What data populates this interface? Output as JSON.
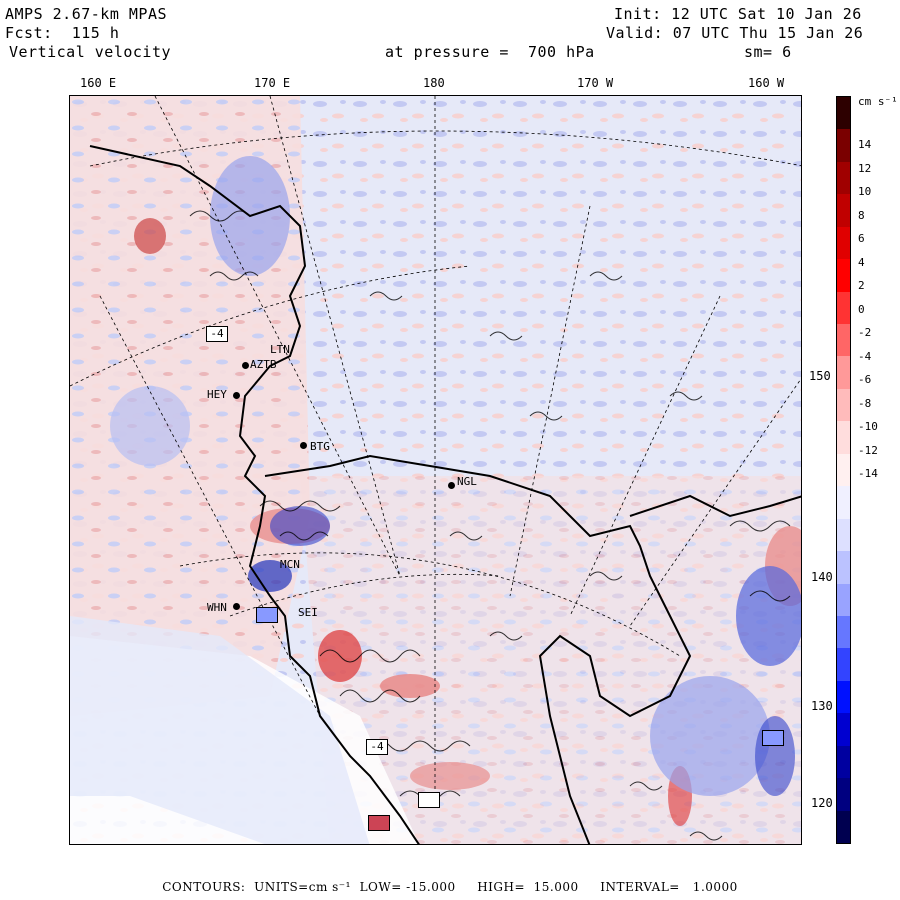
{
  "header": {
    "model": "AMPS 2.67-km MPAS",
    "forecast": "Fcst:  115 h",
    "field": "Vertical velocity",
    "init": "Init: 12 UTC Sat 10 Jan 26",
    "valid": "Valid: 07 UTC Thu 15 Jan 26",
    "pressure": "at pressure =  700 hPa",
    "smoothing": "sm= 6"
  },
  "longitude_labels": [
    "160 E",
    "170 E",
    "180",
    "170 W",
    "160 W"
  ],
  "latitude_labels": [
    "150 W",
    "140 W",
    "130 W",
    "120 W"
  ],
  "stations": [
    "LTN",
    "AZTB",
    "HEY",
    "BTG",
    "NGL",
    "MCN",
    "WHN",
    "SEI"
  ],
  "extrema_labels": [
    "-4",
    "-4"
  ],
  "colorbar": {
    "unit": "cm s⁻¹",
    "ticks": [
      "14",
      "12",
      "10",
      "8",
      "6",
      "4",
      "2",
      "0",
      "-2",
      "-4",
      "-6",
      "-8",
      "-10",
      "-12",
      "-14"
    ],
    "colors": [
      "#2d0000",
      "#7a0000",
      "#a00000",
      "#c00000",
      "#e00000",
      "#ff0000",
      "#ff3333",
      "#ff6666",
      "#ff9999",
      "#ffbbbb",
      "#ffdddd",
      "#fff0f0",
      "#f0f0ff",
      "#dde0ff",
      "#bbc2ff",
      "#99a3ff",
      "#6677ff",
      "#3344ff",
      "#0011ff",
      "#0000d0",
      "#0000a0",
      "#000080",
      "#000050"
    ]
  },
  "footer": {
    "contours": "CONTOURS:  UNITS=cm s⁻¹  LOW= -15.000     HIGH=  15.000     INTERVAL=   1.0000"
  }
}
